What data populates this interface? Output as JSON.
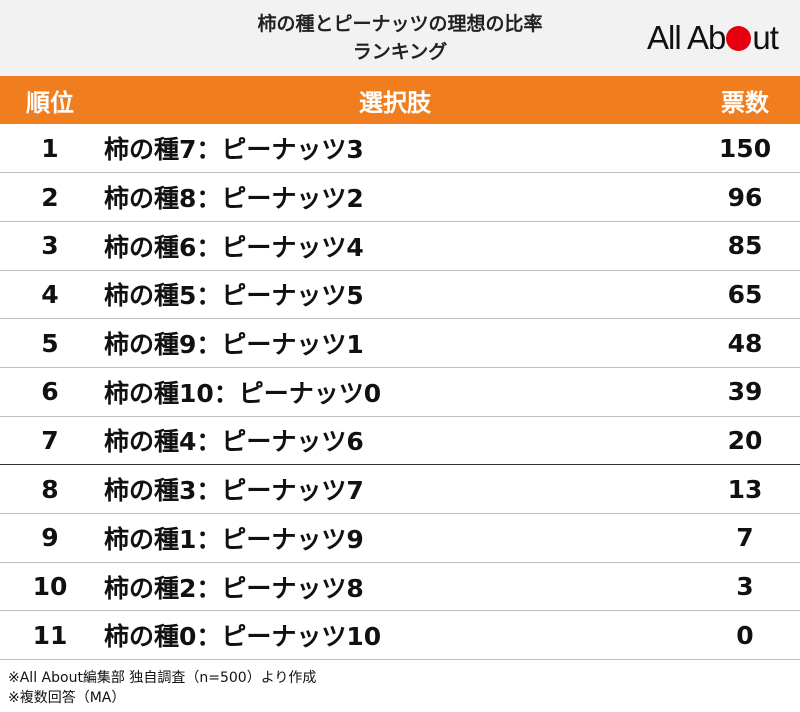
{
  "title_line1": "柿の種とピーナッツの理想の比率",
  "title_line2": "ランキング",
  "logo": {
    "part1": "All Ab",
    "part2": "ut",
    "dot_color": "#e60012"
  },
  "header_color": "#f07d1e",
  "columns": {
    "rank": "順位",
    "choice": "選択肢",
    "votes": "票数"
  },
  "chart_data": {
    "type": "table",
    "title": "柿の種とピーナッツの理想の比率ランキング",
    "headers": [
      "順位",
      "選択肢",
      "票数"
    ],
    "rows": [
      {
        "rank": "1",
        "choice": "柿の種7：ピーナッツ3",
        "votes": "150"
      },
      {
        "rank": "2",
        "choice": "柿の種8：ピーナッツ2",
        "votes": "96"
      },
      {
        "rank": "3",
        "choice": "柿の種6：ピーナッツ4",
        "votes": "85"
      },
      {
        "rank": "4",
        "choice": "柿の種5：ピーナッツ5",
        "votes": "65"
      },
      {
        "rank": "5",
        "choice": "柿の種9：ピーナッツ1",
        "votes": "48"
      },
      {
        "rank": "6",
        "choice": "柿の種10：ピーナッツ0",
        "votes": "39"
      },
      {
        "rank": "7",
        "choice": "柿の種4：ピーナッツ6",
        "votes": "20"
      },
      {
        "rank": "8",
        "choice": "柿の種3：ピーナッツ7",
        "votes": "13"
      },
      {
        "rank": "9",
        "choice": "柿の種1：ピーナッツ9",
        "votes": "7"
      },
      {
        "rank": "10",
        "choice": "柿の種2：ピーナッツ8",
        "votes": "3"
      },
      {
        "rank": "11",
        "choice": "柿の種0：ピーナッツ10",
        "votes": "0"
      }
    ]
  },
  "notes": [
    "※All About編集部 独自調査（n=500）より作成",
    "※複数回答（MA）"
  ]
}
